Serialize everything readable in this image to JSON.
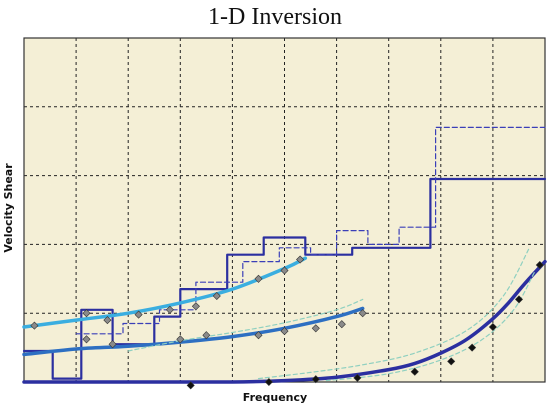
{
  "chart_data": {
    "type": "line",
    "title": "1-D Inversion",
    "xlabel": "Frequency",
    "ylabel": "Velocity Shear",
    "grid": true,
    "xlim": [
      0,
      10
    ],
    "ylim": [
      0,
      5
    ],
    "series": [
      {
        "kind": "step",
        "style": "solid",
        "color": "#2b2fa0",
        "x": [
          0,
          0.55,
          0.55,
          1.1,
          1.1,
          1.7,
          1.7,
          2.5,
          2.5,
          3.0,
          3.0,
          3.9,
          3.9,
          4.6,
          4.6,
          5.4,
          5.4,
          6.3,
          6.3,
          7.8,
          7.8,
          10
        ],
        "y": [
          0.45,
          0.45,
          0.05,
          0.05,
          1.05,
          1.05,
          0.55,
          0.55,
          0.95,
          0.95,
          1.35,
          1.35,
          1.85,
          1.85,
          2.1,
          2.1,
          1.85,
          1.85,
          1.95,
          1.95,
          2.95,
          2.95
        ]
      },
      {
        "kind": "step",
        "style": "dashed",
        "color": "#3a3fb8",
        "x": [
          1.0,
          1.9,
          1.9,
          2.6,
          2.6,
          3.3,
          3.3,
          4.2,
          4.2,
          4.9,
          4.9,
          5.5,
          5.5,
          6.0,
          6.0,
          6.6,
          6.6,
          7.2,
          7.2,
          7.9,
          7.9,
          10
        ],
        "y": [
          0.7,
          0.7,
          0.85,
          0.85,
          1.05,
          1.05,
          1.45,
          1.45,
          1.75,
          1.75,
          1.95,
          1.95,
          1.85,
          1.85,
          2.2,
          2.2,
          2.0,
          2.0,
          2.25,
          2.25,
          3.7,
          3.7
        ]
      },
      {
        "kind": "curve",
        "style": "solid",
        "color": "#3aaee0",
        "x": [
          0,
          1,
          2,
          3,
          4,
          5,
          5.4
        ],
        "y": [
          0.8,
          0.9,
          1.0,
          1.15,
          1.35,
          1.65,
          1.8
        ]
      },
      {
        "kind": "curve",
        "style": "solid",
        "color": "#2d6fc2",
        "x": [
          0,
          1,
          2,
          3,
          4,
          5,
          6,
          6.5
        ],
        "y": [
          0.4,
          0.48,
          0.52,
          0.58,
          0.66,
          0.78,
          0.95,
          1.07
        ]
      },
      {
        "kind": "curve",
        "style": "solid",
        "color": "#2b2fa0",
        "x": [
          0,
          2,
          4,
          5,
          6,
          7,
          7.5,
          8,
          8.5,
          9,
          9.3,
          9.6,
          10
        ],
        "y": [
          0.0,
          0.0,
          0.0,
          0.02,
          0.07,
          0.18,
          0.27,
          0.42,
          0.62,
          0.92,
          1.15,
          1.42,
          1.75
        ]
      },
      {
        "kind": "curve",
        "style": "dotted",
        "color": "#8fd0c0",
        "x": [
          2,
          3,
          4,
          5,
          6,
          6.5
        ],
        "y": [
          0.45,
          0.6,
          0.72,
          0.86,
          1.05,
          1.2
        ]
      },
      {
        "kind": "curve",
        "style": "dotted",
        "color": "#8fd0c0",
        "x": [
          4.5,
          5.5,
          6.5,
          7.5,
          8.5,
          9.2,
          9.7
        ],
        "y": [
          0.05,
          0.14,
          0.25,
          0.42,
          0.75,
          1.25,
          1.95
        ]
      },
      {
        "kind": "curve",
        "style": "dotted",
        "color": "#8fd0c0",
        "x": [
          5.8,
          7,
          8,
          8.8,
          9.4,
          9.8
        ],
        "y": [
          0.02,
          0.12,
          0.32,
          0.62,
          1.05,
          1.6
        ]
      }
    ],
    "markers": [
      {
        "shape": "diamond",
        "color": "#8a8a8a",
        "x": [
          0.2,
          1.2,
          1.6,
          2.2,
          2.8,
          3.3,
          3.7,
          4.5,
          5.0,
          5.3
        ],
        "y": [
          0.82,
          1.0,
          0.9,
          0.98,
          1.05,
          1.1,
          1.25,
          1.5,
          1.62,
          1.78
        ]
      },
      {
        "shape": "diamond",
        "color": "#8a8a8a",
        "x": [
          1.2,
          1.7,
          3.0,
          3.5,
          4.5,
          5.0,
          5.6,
          6.1,
          6.5
        ],
        "y": [
          0.62,
          0.55,
          0.62,
          0.68,
          0.68,
          0.74,
          0.78,
          0.84,
          1.0
        ]
      },
      {
        "shape": "diamond",
        "color": "#111111",
        "x": [
          3.2,
          4.7,
          5.6,
          6.4,
          7.5,
          8.2,
          8.6,
          9.0,
          9.5,
          9.9
        ],
        "y": [
          -0.05,
          0.0,
          0.04,
          0.06,
          0.15,
          0.3,
          0.5,
          0.8,
          1.2,
          1.7
        ]
      }
    ]
  }
}
